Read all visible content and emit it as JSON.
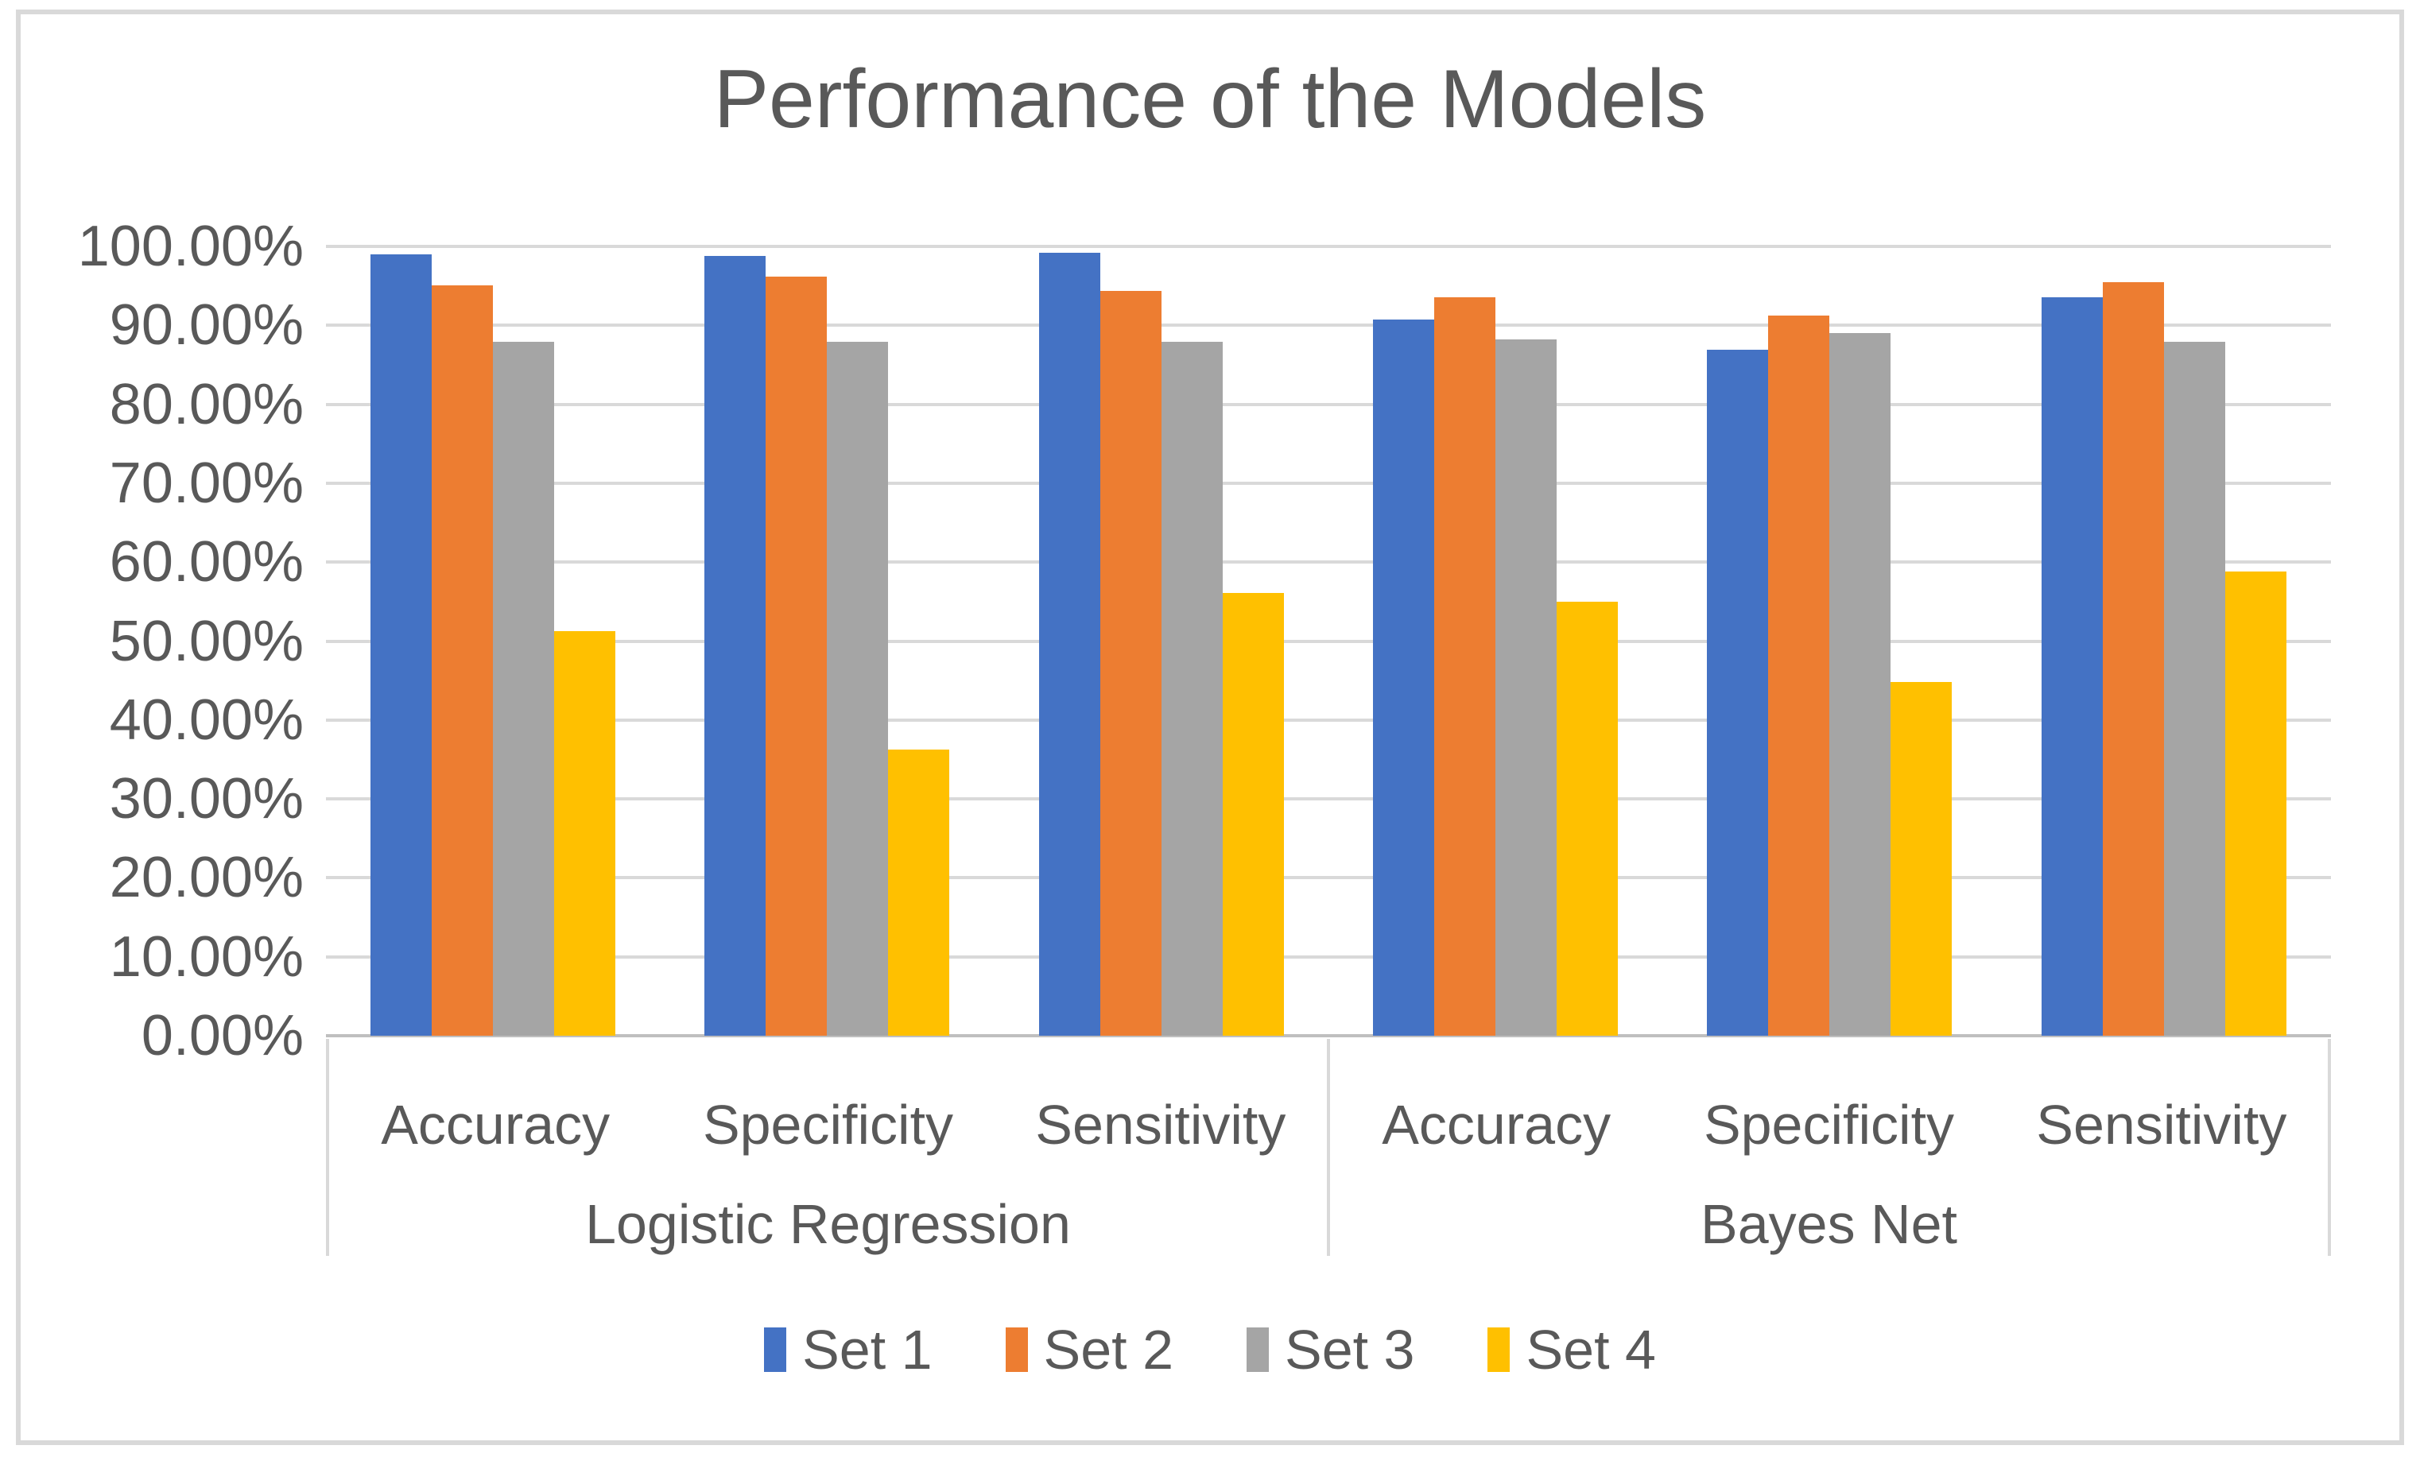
{
  "chart": {
    "colors": {
      "background": "#FFFFFF",
      "border": "#D9D9D9",
      "gridline": "#D9D9D9",
      "axis_line": "#BFBFBF",
      "text": "#595959"
    }
  },
  "chart_data": {
    "type": "bar",
    "title": "Performance of the Models",
    "xlabel": "",
    "ylabel": "",
    "ylim": [
      0,
      100
    ],
    "grid": true,
    "legend_position": "bottom",
    "value_format": "percent",
    "y_ticks": [
      "100.00%",
      "90.00%",
      "80.00%",
      "70.00%",
      "60.00%",
      "50.00%",
      "40.00%",
      "30.00%",
      "20.00%",
      "10.00%",
      "0.00%"
    ],
    "groups": [
      {
        "label": "Logistic Regression",
        "categories": [
          "Accuracy",
          "Specificity",
          "Sensitivity"
        ]
      },
      {
        "label": "Bayes Net",
        "categories": [
          "Accuracy",
          "Specificity",
          "Sensitivity"
        ]
      }
    ],
    "category_order": [
      "Logistic Regression / Accuracy",
      "Logistic Regression / Specificity",
      "Logistic Regression / Sensitivity",
      "Bayes Net / Accuracy",
      "Bayes Net / Specificity",
      "Bayes Net / Sensitivity"
    ],
    "series": [
      {
        "name": "Set 1",
        "color": "#4472C4",
        "values": [
          99.0,
          98.8,
          99.2,
          90.7,
          86.9,
          93.6
        ]
      },
      {
        "name": "Set 2",
        "color": "#ED7D31",
        "values": [
          95.1,
          96.2,
          94.4,
          93.6,
          91.2,
          95.5
        ]
      },
      {
        "name": "Set 3",
        "color": "#A5A5A5",
        "values": [
          87.9,
          87.9,
          87.9,
          88.2,
          89.0,
          87.9
        ]
      },
      {
        "name": "Set 4",
        "color": "#FFC000",
        "values": [
          51.3,
          36.3,
          56.1,
          55.0,
          44.8,
          58.8
        ]
      }
    ]
  }
}
